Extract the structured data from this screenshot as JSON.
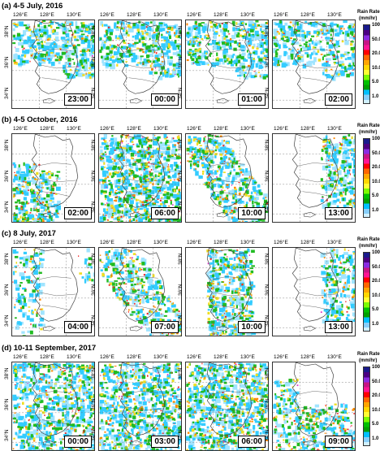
{
  "rows": [
    {
      "title": "(a) 4-5 July, 2016",
      "times": [
        "23:00",
        "00:00",
        "01:00",
        "02:00"
      ]
    },
    {
      "title": "(b) 4-5 October, 2016",
      "times": [
        "02:00",
        "06:00",
        "10:00",
        "13:00"
      ]
    },
    {
      "title": "(c) 8 July, 2017",
      "times": [
        "04:00",
        "07:00",
        "10:00",
        "13:00"
      ]
    },
    {
      "title": "(d) 10-11 September, 2017",
      "times": [
        "00:00",
        "03:00",
        "06:00",
        "09:00"
      ]
    }
  ],
  "longitude_labels": [
    "126°E",
    "128°E",
    "130°E"
  ],
  "latitude_labels": [
    "38°N",
    "36°N",
    "34°N"
  ],
  "colorbar": {
    "title_line1": "Rain Rate",
    "title_line2": "(mm/hr)",
    "ticks": [
      "100.0",
      "50.0",
      "20.0",
      "10.0",
      "5.0",
      "1.0"
    ],
    "colors": [
      "#1a1a8c",
      "#4b0082",
      "#8a2be2",
      "#c71585",
      "#ff1493",
      "#ff0000",
      "#ff6600",
      "#ffa500",
      "#ffd700",
      "#ffff33",
      "#7cfc00",
      "#00c000",
      "#00a000",
      "#00bfff",
      "#87cefa",
      "#d0f0ff"
    ]
  },
  "panel_colors": {
    "cyan": "#33ccff",
    "light": "#a0e4ff",
    "green": "#22bb22",
    "yellow": "#eedd22",
    "orange": "#ff8800",
    "red": "#ee2222",
    "magenta": "#dd33cc",
    "land": "#ffffff",
    "border": "#444444"
  }
}
